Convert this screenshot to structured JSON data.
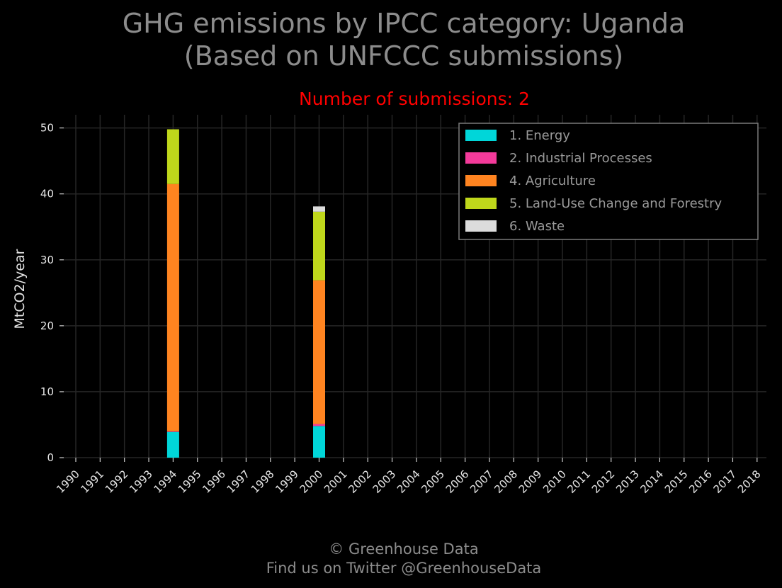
{
  "chart_data": {
    "type": "bar",
    "stacked": true,
    "title": "GHG emissions by IPCC category: Uganda",
    "title_line2": "(Based on UNFCCC submissions)",
    "subtitle": "Number of submissions: 2",
    "ylabel": "MtCO2/year",
    "ylim": [
      0,
      52
    ],
    "yticks": [
      "0",
      "10",
      "20",
      "30",
      "40",
      "50"
    ],
    "grid": true,
    "legend_position": "top-right",
    "categories": [
      "1990",
      "1991",
      "1992",
      "1993",
      "1994",
      "1995",
      "1996",
      "1997",
      "1998",
      "1999",
      "2000",
      "2001",
      "2002",
      "2003",
      "2004",
      "2005",
      "2006",
      "2007",
      "2008",
      "2009",
      "2010",
      "2011",
      "2012",
      "2013",
      "2014",
      "2015",
      "2016",
      "2017",
      "2018"
    ],
    "series": [
      {
        "name": "1. Energy",
        "color": "#00d6d9",
        "values": [
          0,
          0,
          0,
          0,
          3.9,
          0,
          0,
          0,
          0,
          0,
          4.8,
          0,
          0,
          0,
          0,
          0,
          0,
          0,
          0,
          0,
          0,
          0,
          0,
          0,
          0,
          0,
          0,
          0,
          0
        ]
      },
      {
        "name": "2. Industrial Processes",
        "color": "#f33a9a",
        "values": [
          0,
          0,
          0,
          0,
          0.1,
          0,
          0,
          0,
          0,
          0,
          0.3,
          0,
          0,
          0,
          0,
          0,
          0,
          0,
          0,
          0,
          0,
          0,
          0,
          0,
          0,
          0,
          0,
          0,
          0
        ]
      },
      {
        "name": "4. Agriculture",
        "color": "#ff8420",
        "values": [
          0,
          0,
          0,
          0,
          37.5,
          0,
          0,
          0,
          0,
          0,
          21.8,
          0,
          0,
          0,
          0,
          0,
          0,
          0,
          0,
          0,
          0,
          0,
          0,
          0,
          0,
          0,
          0,
          0,
          0
        ]
      },
      {
        "name": "5. Land-Use Change and Forestry",
        "color": "#bfd71b",
        "values": [
          0,
          0,
          0,
          0,
          8.3,
          0,
          0,
          0,
          0,
          0,
          10.4,
          0,
          0,
          0,
          0,
          0,
          0,
          0,
          0,
          0,
          0,
          0,
          0,
          0,
          0,
          0,
          0,
          0,
          0
        ]
      },
      {
        "name": "6. Waste",
        "color": "#dcdcdc",
        "values": [
          0,
          0,
          0,
          0,
          0,
          0,
          0,
          0,
          0,
          0,
          0.8,
          0,
          0,
          0,
          0,
          0,
          0,
          0,
          0,
          0,
          0,
          0,
          0,
          0,
          0,
          0,
          0,
          0,
          0
        ]
      }
    ]
  },
  "footer": {
    "line1": "© Greenhouse Data",
    "line2": "Find us on Twitter @GreenhouseData"
  }
}
